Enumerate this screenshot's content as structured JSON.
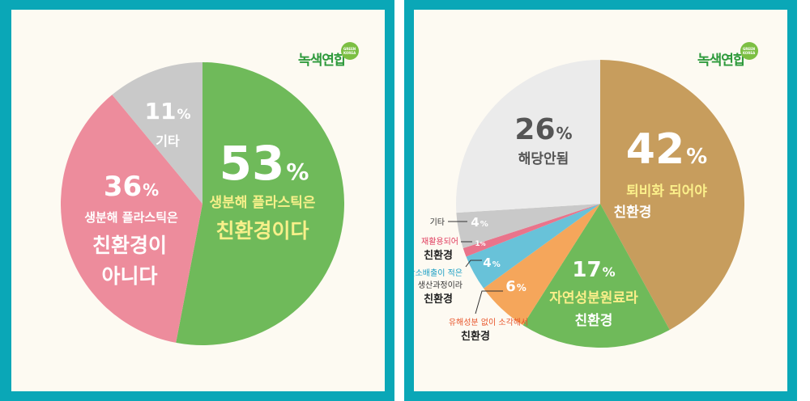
{
  "logo": {
    "text": "녹색연합",
    "badge_line1": "GREEN",
    "badge_line2": "KOREA"
  },
  "colors": {
    "frame": "#0aa7b7",
    "background": "#fdfaf2",
    "green": "#6fba5a",
    "pink": "#ed8c9c",
    "gray": "#c9c9c9",
    "brown": "#c79d5d",
    "light_gray": "#ebebeb",
    "orange": "#f5a65b",
    "blue": "#68c2d9",
    "bright_pink": "#e9748b",
    "label_yellow": "#f7f08a"
  },
  "chart_data": [
    {
      "type": "pie",
      "slices": [
        {
          "label": "생분해 플라스틱은 친환경이다",
          "value": 53,
          "pct_text": "53",
          "line1": "생분해 플라스틱은",
          "line2": "친환경이다"
        },
        {
          "label": "생분해 플라스틱은 친환경이 아니다",
          "value": 36,
          "pct_text": "36",
          "line1": "생분해 플라스틱은",
          "line2": "친환경이",
          "line3": "아니다"
        },
        {
          "label": "기타",
          "value": 11,
          "pct_text": "11",
          "line1": "기타"
        }
      ],
      "percent_sign": "%"
    },
    {
      "type": "pie",
      "slices": [
        {
          "label": "퇴비화 되어야 친환경",
          "value": 42,
          "pct_text": "42",
          "line1": "퇴비화 되어야",
          "line2": "친환경"
        },
        {
          "label": "자연성분원료라 친환경",
          "value": 17,
          "pct_text": "17",
          "line1": "자연성분원료라",
          "line2": "친환경"
        },
        {
          "label": "유해성분 없이 소각해서 친환경",
          "value": 6,
          "pct_text": "6",
          "line1": "유해성분 없이 소각해서",
          "line2": "친환경"
        },
        {
          "label": "탄소배출이 적은 생산과정이라 친환경",
          "value": 4,
          "pct_text": "4",
          "line1": "탄소배출이 적은",
          "line2": "생산과정이라",
          "line3": "친환경"
        },
        {
          "label": "재활용되어 친환경",
          "value": 1,
          "pct_text": "1",
          "line1": "재활용되어",
          "line2": "친환경"
        },
        {
          "label": "기타",
          "value": 4,
          "pct_text": "4",
          "line1": "기타"
        },
        {
          "label": "해당안됨",
          "value": 26,
          "pct_text": "26",
          "line1": "해당안됨"
        }
      ],
      "percent_sign": "%"
    }
  ]
}
